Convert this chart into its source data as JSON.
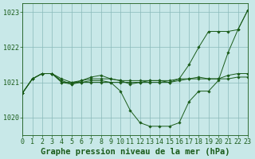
{
  "title": "Graphe pression niveau de la mer (hPa)",
  "bg_color": "#c8e8e8",
  "line_color": "#1a5c1a",
  "xlim": [
    0,
    23
  ],
  "ylim": [
    1019.5,
    1023.25
  ],
  "yticks": [
    1020,
    1021,
    1022,
    1023
  ],
  "xticks": [
    0,
    1,
    2,
    3,
    4,
    5,
    6,
    7,
    8,
    9,
    10,
    11,
    12,
    13,
    14,
    15,
    16,
    17,
    18,
    19,
    20,
    21,
    22,
    23
  ],
  "s1": [
    1020.7,
    1021.1,
    1021.25,
    1021.25,
    1021.1,
    1021.0,
    1021.05,
    1021.1,
    1021.1,
    1021.1,
    1021.05,
    1021.05,
    1021.05,
    1021.05,
    1021.05,
    1021.05,
    1021.1,
    1021.1,
    1021.1,
    1021.1,
    1021.1,
    1021.1,
    1021.15,
    1021.15
  ],
  "s2": [
    1020.7,
    1021.1,
    1021.25,
    1021.25,
    1021.05,
    1020.95,
    1021.05,
    1021.15,
    1021.2,
    1021.1,
    1021.05,
    1020.95,
    1021.0,
    1021.05,
    1021.05,
    1021.0,
    1021.05,
    1021.1,
    1021.15,
    1021.1,
    1021.1,
    1021.2,
    1021.25,
    1021.25
  ],
  "s3": [
    1020.7,
    1021.1,
    1021.25,
    1021.25,
    1021.0,
    1020.95,
    1021.0,
    1021.05,
    1021.05,
    1021.0,
    1020.75,
    1020.2,
    1019.85,
    1019.75,
    1019.75,
    1019.75,
    1019.85,
    1020.45,
    1020.75,
    1020.75,
    1021.05,
    1021.85,
    1022.5,
    1023.05
  ],
  "s4": [
    1020.7,
    1021.1,
    1021.25,
    1021.25,
    1021.0,
    1021.0,
    1021.0,
    1021.0,
    1021.0,
    1021.0,
    1021.0,
    1021.0,
    1021.0,
    1021.0,
    1021.0,
    1021.0,
    1021.1,
    1021.5,
    1022.0,
    1022.45,
    1022.45,
    1022.45,
    1022.5,
    1023.05
  ],
  "tick_fontsize": 6.0,
  "title_fontsize": 7.5
}
